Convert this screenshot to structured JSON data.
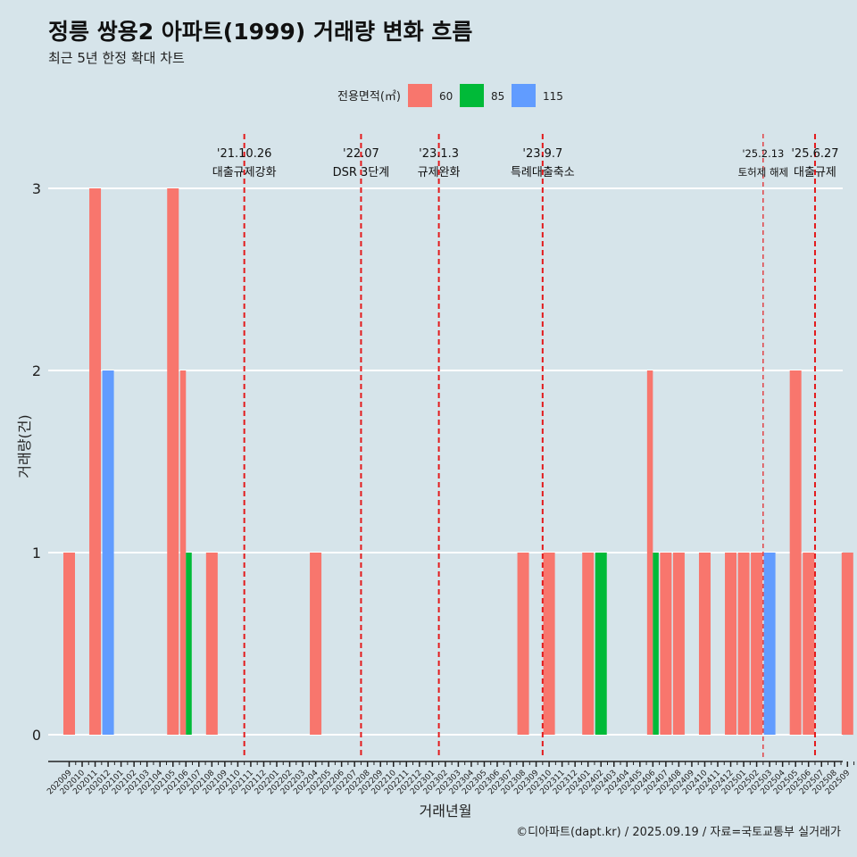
{
  "title": "정릉 쌍용2 아파트(1999) 거래량 변화 흐름",
  "subtitle": "최근 5년 한정 확대 차트",
  "caption": "©디아파트(dapt.kr) / 2025.09.19 / 자료=국토교통부 실거래가",
  "colors": {
    "background": "#d6e4ea",
    "grid": "#ffffff",
    "event_line": "#e31a1c",
    "axis": "#222222"
  },
  "chart_data": {
    "type": "bar",
    "xlabel": "거래년월",
    "ylabel": "거래량(건)",
    "ylim": [
      0,
      3
    ],
    "yticks": [
      0,
      1,
      2,
      3
    ],
    "legend": {
      "title": "전용면적(㎡)",
      "position": "top",
      "entries": [
        {
          "label": "60",
          "color": "#f8766d"
        },
        {
          "label": "85",
          "color": "#00ba38"
        },
        {
          "label": "115",
          "color": "#619cff"
        }
      ]
    },
    "categories": [
      "202009",
      "202010",
      "202011",
      "202012",
      "202101",
      "202102",
      "202103",
      "202104",
      "202105",
      "202106",
      "202107",
      "202108",
      "202109",
      "202110",
      "202111",
      "202112",
      "202201",
      "202202",
      "202203",
      "202204",
      "202205",
      "202206",
      "202207",
      "202208",
      "202209",
      "202210",
      "202211",
      "202212",
      "202301",
      "202302",
      "202303",
      "202304",
      "202305",
      "202306",
      "202307",
      "202308",
      "202309",
      "202310",
      "202311",
      "202312",
      "202401",
      "202402",
      "202403",
      "202404",
      "202405",
      "202406",
      "202407",
      "202408",
      "202409",
      "202410",
      "202411",
      "202412",
      "202501",
      "202502",
      "202503",
      "202504",
      "202505",
      "202506",
      "202507",
      "202508",
      "202509"
    ],
    "series": [
      {
        "name": "60",
        "values": [
          1,
          0,
          3,
          0,
          0,
          0,
          0,
          0,
          3,
          2,
          0,
          1,
          0,
          0,
          0,
          0,
          0,
          0,
          0,
          1,
          0,
          0,
          0,
          0,
          0,
          0,
          0,
          0,
          0,
          0,
          0,
          0,
          0,
          0,
          0,
          1,
          0,
          1,
          0,
          0,
          1,
          0,
          0,
          0,
          0,
          2,
          1,
          1,
          0,
          1,
          0,
          1,
          1,
          1,
          0,
          0,
          2,
          1,
          0,
          0,
          1
        ]
      },
      {
        "name": "85",
        "values": [
          0,
          0,
          0,
          0,
          0,
          0,
          0,
          0,
          0,
          1,
          0,
          0,
          0,
          0,
          0,
          0,
          0,
          0,
          0,
          0,
          0,
          0,
          0,
          0,
          0,
          0,
          0,
          0,
          0,
          0,
          0,
          0,
          0,
          0,
          0,
          0,
          0,
          0,
          0,
          0,
          0,
          1,
          0,
          0,
          0,
          1,
          0,
          0,
          0,
          0,
          0,
          0,
          0,
          0,
          0,
          0,
          0,
          0,
          0,
          0,
          0
        ]
      },
      {
        "name": "115",
        "values": [
          0,
          0,
          0,
          2,
          0,
          0,
          0,
          0,
          0,
          0,
          0,
          0,
          0,
          0,
          0,
          0,
          0,
          0,
          0,
          0,
          0,
          0,
          0,
          0,
          0,
          0,
          0,
          0,
          0,
          0,
          0,
          0,
          0,
          0,
          0,
          0,
          0,
          0,
          0,
          0,
          0,
          0,
          0,
          0,
          0,
          0,
          0,
          0,
          0,
          0,
          0,
          0,
          0,
          0,
          1,
          0,
          0,
          0,
          0,
          0,
          0
        ]
      }
    ],
    "annotations": [
      {
        "date_label": "'21.10.26",
        "text": "대출규제강화",
        "month_offset": 13.5,
        "style": "thick"
      },
      {
        "date_label": "'22.07",
        "text": "DSR 3단계",
        "month_offset": 22.5,
        "style": "thick"
      },
      {
        "date_label": "'23.1.3",
        "text": "규제완화",
        "month_offset": 28.5,
        "style": "thick"
      },
      {
        "date_label": "'23.9.7",
        "text": "특례대출축소",
        "month_offset": 36.5,
        "style": "thick"
      },
      {
        "date_label": "'25.2.13",
        "text": "토허제 해제",
        "month_offset": 53.5,
        "style": "thin"
      },
      {
        "date_label": "'25.6.27",
        "text": "대출규제",
        "month_offset": 57.5,
        "style": "thick"
      }
    ]
  }
}
